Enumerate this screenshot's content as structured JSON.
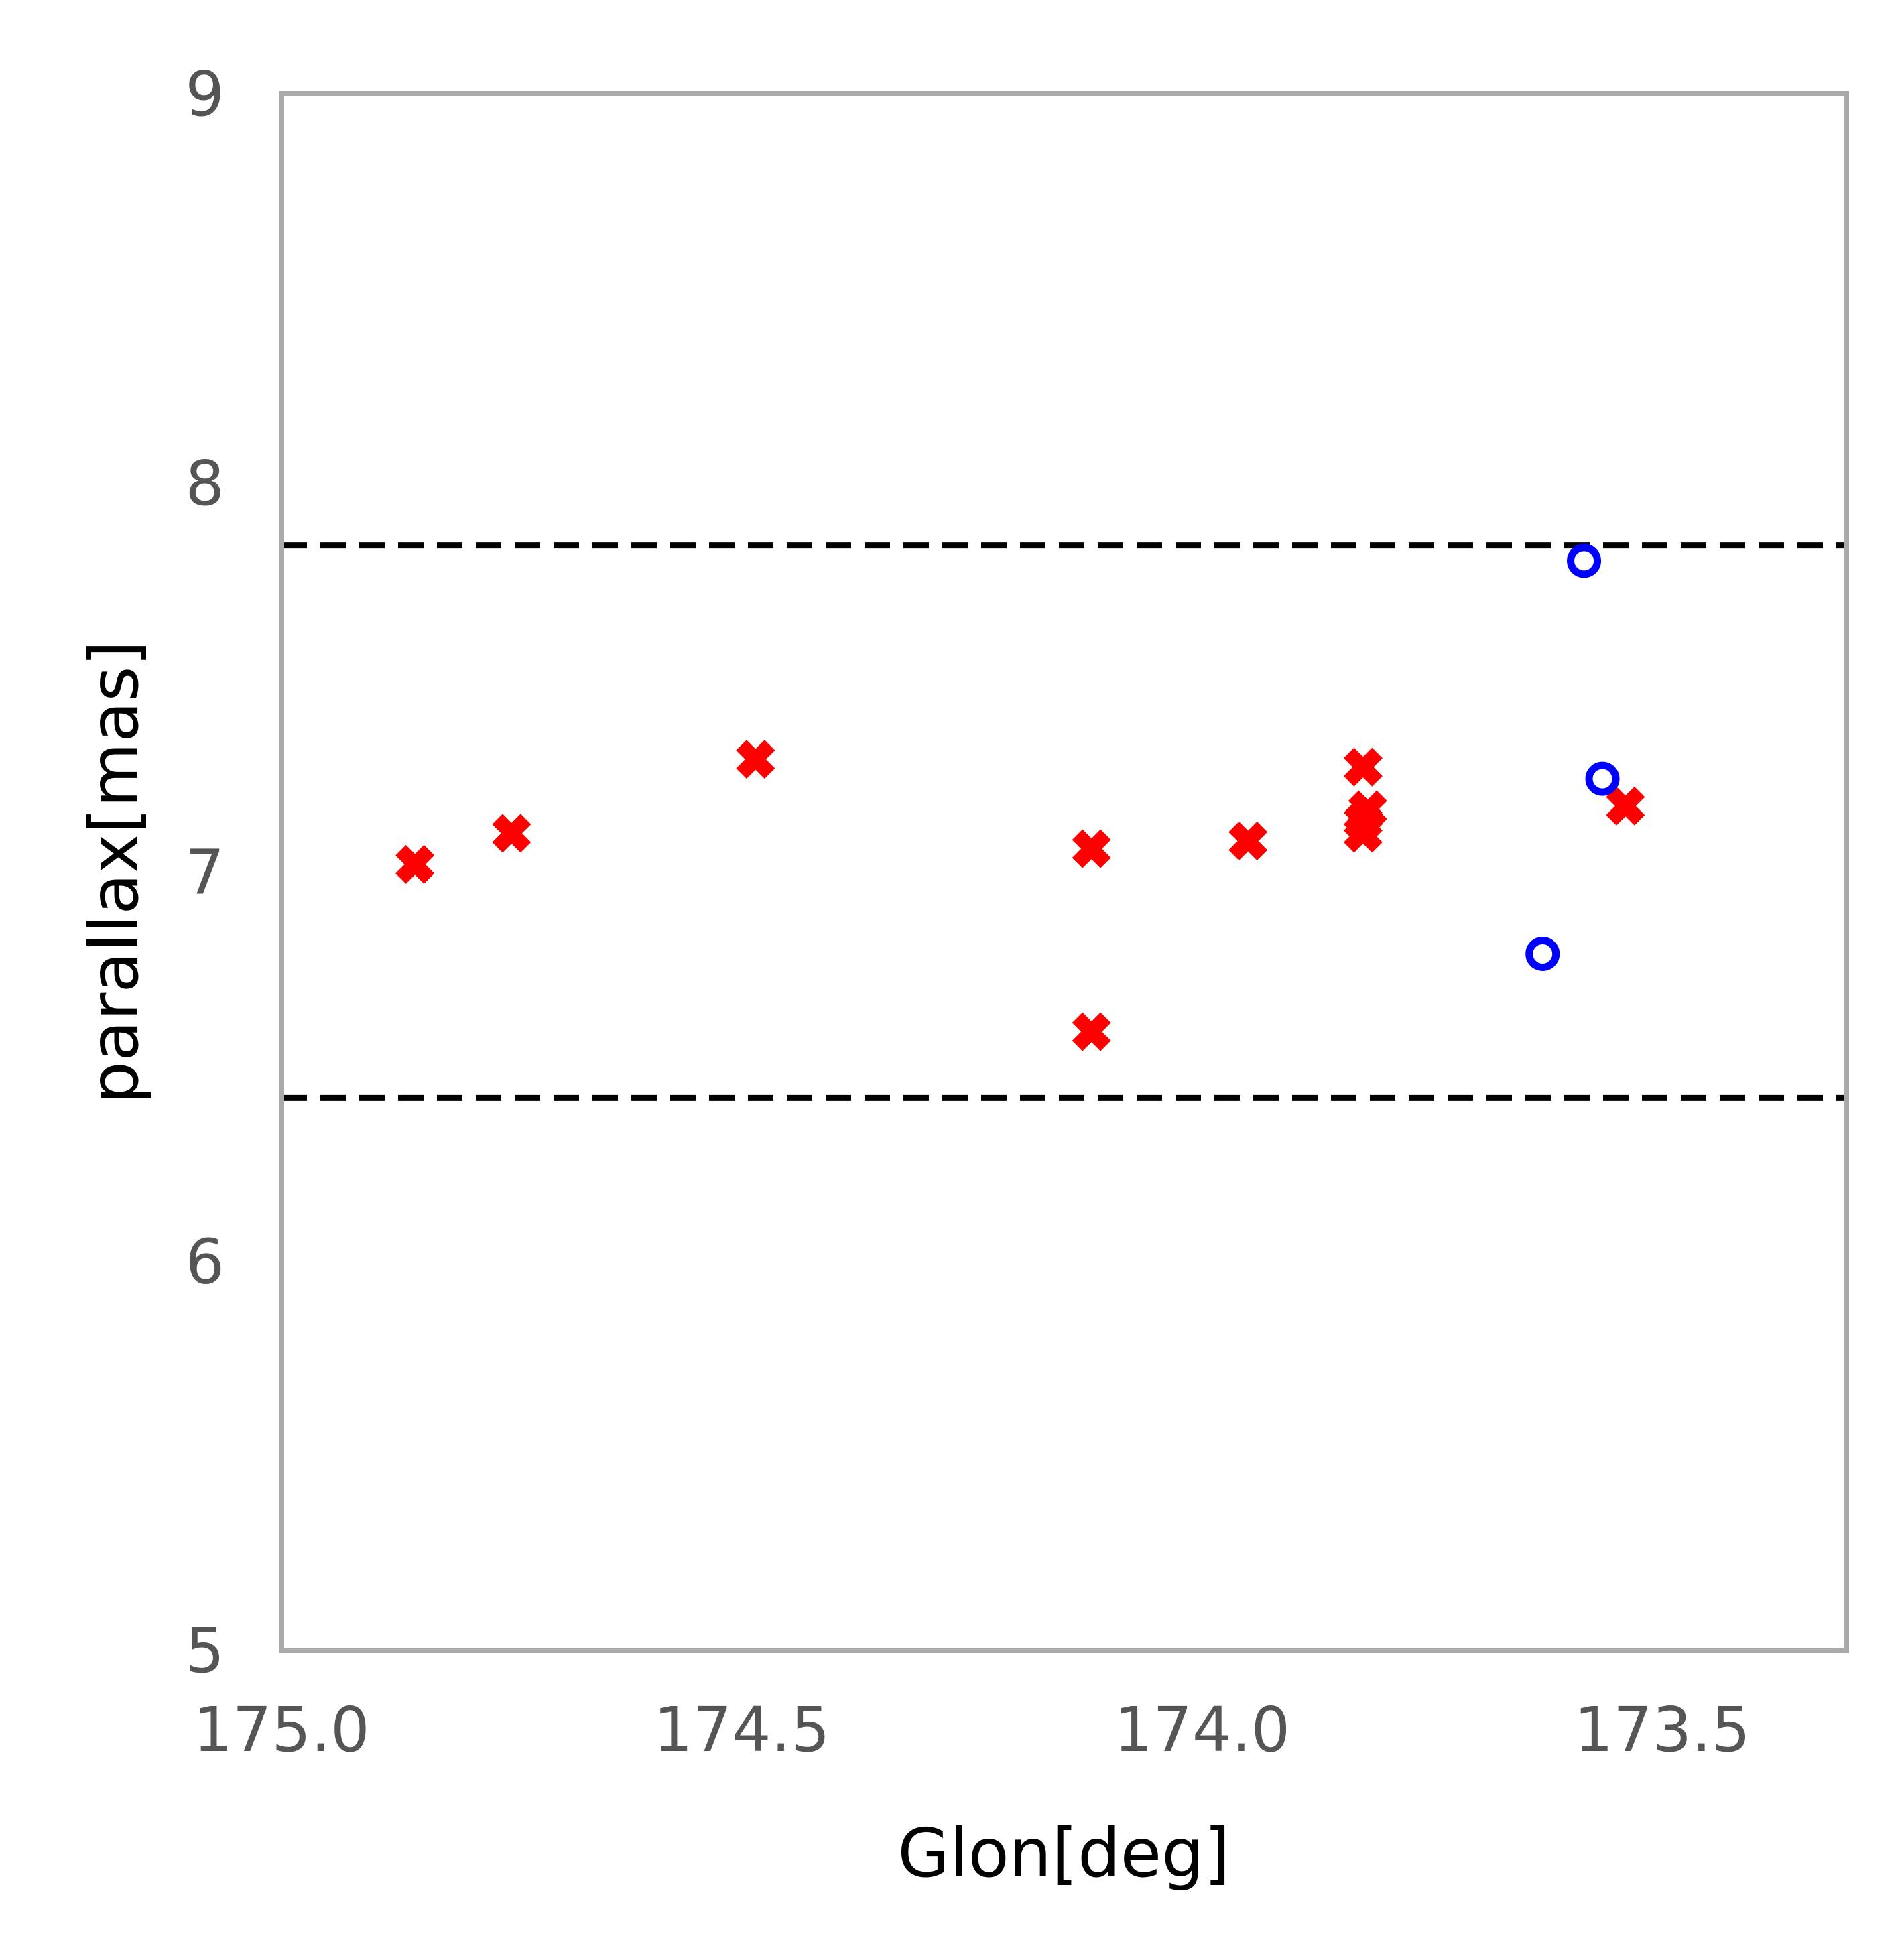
{
  "chart_data": {
    "type": "scatter",
    "title": "",
    "xlabel": "Glon[deg]",
    "ylabel": "parallax[mas]",
    "xlim": [
      175.0,
      173.3
    ],
    "ylim": [
      5,
      9
    ],
    "x_reversed": true,
    "grid": false,
    "legend": "none",
    "xticks": [
      {
        "value": 175.0,
        "label": "175.0"
      },
      {
        "value": 174.5,
        "label": "174.5"
      },
      {
        "value": 174.0,
        "label": "174.0"
      },
      {
        "value": 173.5,
        "label": "173.5"
      }
    ],
    "yticks": [
      {
        "value": 5,
        "label": "5"
      },
      {
        "value": 6,
        "label": "6"
      },
      {
        "value": 7,
        "label": "7"
      },
      {
        "value": 8,
        "label": "8"
      },
      {
        "value": 9,
        "label": "9"
      }
    ],
    "reference_lines": [
      {
        "y": 7.84,
        "style": "dashed",
        "color": "#000000"
      },
      {
        "y": 6.42,
        "style": "dashed",
        "color": "#000000"
      }
    ],
    "series": [
      {
        "marker": "x-filled",
        "color": "#ff0000",
        "points": [
          {
            "x": 174.855,
            "y": 7.02
          },
          {
            "x": 174.75,
            "y": 7.1
          },
          {
            "x": 174.485,
            "y": 7.29
          },
          {
            "x": 174.12,
            "y": 7.06
          },
          {
            "x": 174.12,
            "y": 6.59
          },
          {
            "x": 173.95,
            "y": 7.08
          },
          {
            "x": 173.825,
            "y": 7.27
          },
          {
            "x": 173.82,
            "y": 7.16
          },
          {
            "x": 173.825,
            "y": 7.13
          },
          {
            "x": 173.825,
            "y": 7.1
          },
          {
            "x": 173.54,
            "y": 7.17
          }
        ]
      },
      {
        "marker": "circle-open",
        "color": "#0000ff",
        "points": [
          {
            "x": 173.585,
            "y": 7.8
          },
          {
            "x": 173.565,
            "y": 7.24
          },
          {
            "x": 173.63,
            "y": 6.79
          }
        ]
      }
    ]
  }
}
